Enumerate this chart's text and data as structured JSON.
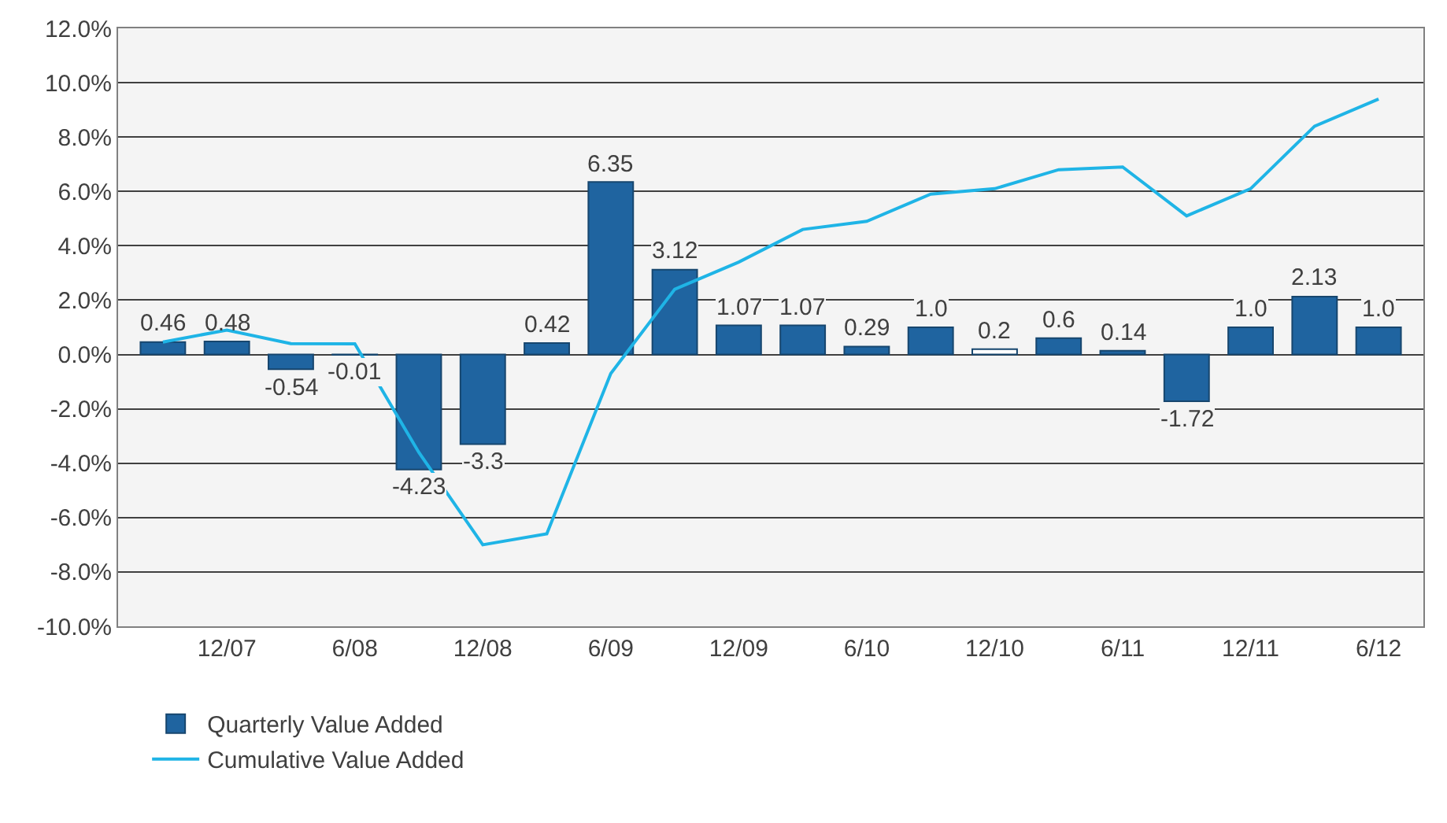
{
  "chart_data": {
    "type": "bar",
    "categories": [
      null,
      "12/07",
      null,
      "6/08",
      null,
      "12/08",
      null,
      "6/09",
      null,
      "12/09",
      null,
      "6/10",
      null,
      "12/10",
      null,
      "6/11",
      null,
      "12/11",
      null,
      "6/12"
    ],
    "series": [
      {
        "name": "Quarterly Value Added",
        "type": "bar",
        "color": "#1f64a0",
        "colors": [
          "#1f64a0",
          "#1f64a0",
          "#1f64a0",
          "#1f64a0",
          "#1f64a0",
          "#1f64a0",
          "#1f64a0",
          "#1f64a0",
          "#1f64a0",
          "#1f64a0",
          "#1f64a0",
          "#1f64a0",
          "#1f64a0",
          "#ffffff",
          "#1f64a0",
          "#1f64a0",
          "#1f64a0",
          "#1f64a0",
          "#1f64a0",
          "#1f64a0"
        ],
        "values": [
          0.46,
          0.48,
          -0.54,
          -0.01,
          -4.23,
          -3.3,
          0.42,
          6.35,
          3.12,
          1.07,
          1.07,
          0.29,
          1.0,
          0.2,
          0.6,
          0.14,
          -1.72,
          1.0,
          2.13,
          1.0
        ],
        "value_labels": [
          "0.46",
          "0.48",
          "-0.54",
          "-0.01",
          "-4.23",
          "-3.3",
          "0.42",
          "6.35",
          "3.12",
          "1.07",
          "1.07",
          "0.29",
          "1.0",
          "0.2",
          "0.6",
          "0.14",
          "-1.72",
          "1.0",
          "2.13",
          "1.0"
        ]
      },
      {
        "name": "Cumulative Value Added",
        "type": "line",
        "color": "#1fb4e6",
        "values": [
          0.46,
          0.9,
          0.4,
          0.39,
          -3.6,
          -7.0,
          -6.6,
          -0.7,
          2.4,
          3.4,
          4.6,
          4.9,
          5.9,
          6.1,
          6.8,
          6.9,
          5.1,
          6.1,
          8.4,
          9.4
        ]
      }
    ],
    "ylim": [
      -10,
      12
    ],
    "yticks": [
      {
        "value": -10,
        "label": "-10.0%"
      },
      {
        "value": -8,
        "label": "-8.0%"
      },
      {
        "value": -6,
        "label": "-6.0%"
      },
      {
        "value": -4,
        "label": "-4.0%"
      },
      {
        "value": -2,
        "label": "-2.0%"
      },
      {
        "value": 0,
        "label": "0.0%"
      },
      {
        "value": 2,
        "label": "2.0%"
      },
      {
        "value": 4,
        "label": "4.0%"
      },
      {
        "value": 6,
        "label": "6.0%"
      },
      {
        "value": 8,
        "label": "8.0%"
      },
      {
        "value": 10,
        "label": "10.0%"
      },
      {
        "value": 12,
        "label": "12.0%"
      }
    ],
    "grid": "y",
    "legend": "bottom left",
    "marker": "none",
    "line_style": "solid"
  }
}
